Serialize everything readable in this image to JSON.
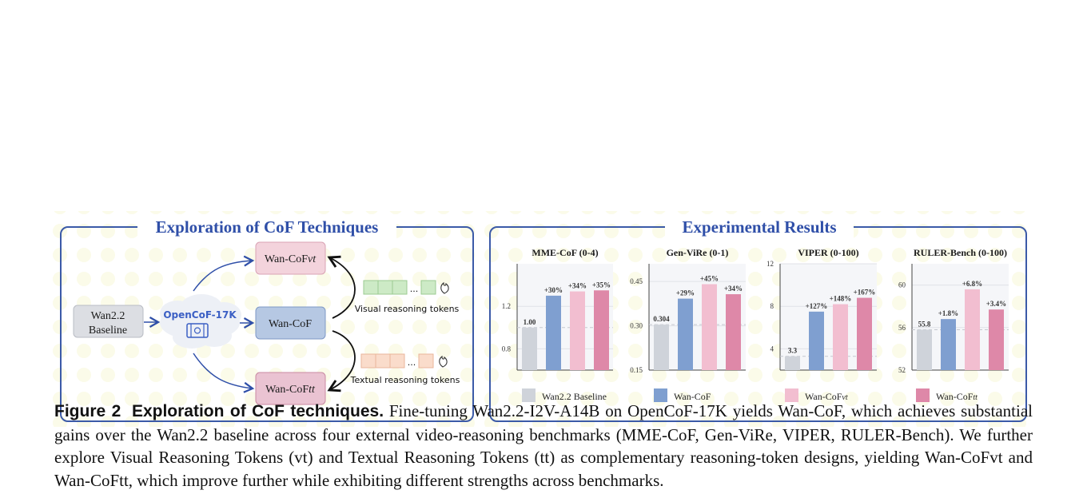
{
  "left_panel": {
    "title": "Exploration of CoF Techniques",
    "baseline_line1": "Wan2.2",
    "baseline_line2": "Baseline",
    "dataset": "OpenCoF-17K",
    "node_vt": "Wan-CoF",
    "node_vt_suffix": "vt",
    "node_mid": "Wan-CoF",
    "node_tt": "Wan-CoF",
    "node_tt_suffix": "tt",
    "visual_tokens_label": "Visual reasoning tokens",
    "textual_tokens_label": "Textual reasoning tokens",
    "ellipsis": "...",
    "colors": {
      "border": "#3b5aa8",
      "visual_token": "#cdeac6",
      "textual_token": "#fadccb",
      "vt_node": "#f3d3dc",
      "mid_node": "#b6c8e3",
      "tt_node": "#eac3d2",
      "baseline_node": "#dcdee3"
    }
  },
  "right_panel": {
    "title": "Experimental Results",
    "legend": [
      "Wan2.2 Baseline",
      "Wan-CoF",
      "Wan-CoF",
      "Wan-CoF"
    ],
    "legend_suffix": [
      "",
      "",
      "vt",
      "tt"
    ],
    "colors": [
      "#cfd3da",
      "#7f9fd0",
      "#f2bed0",
      "#de88a8"
    ]
  },
  "chart_data": [
    {
      "type": "bar",
      "title": "MME-CoF (0-4)",
      "categories": [
        "Wan2.2 Baseline",
        "Wan-CoF",
        "Wan-CoFvt",
        "Wan-CoFtt"
      ],
      "values": [
        1.0,
        1.3,
        1.34,
        1.35
      ],
      "labels": [
        "1.00",
        "+30%",
        "+34%",
        "+35%"
      ],
      "ylim": [
        0.6,
        1.6
      ],
      "yticks": [
        "0.8",
        "1.2"
      ],
      "ytick_values": [
        0.8,
        1.2
      ]
    },
    {
      "type": "bar",
      "title": "Gen-ViRe (0-1)",
      "categories": [
        "Wan2.2 Baseline",
        "Wan-CoF",
        "Wan-CoFvt",
        "Wan-CoFtt"
      ],
      "values": [
        0.304,
        0.392,
        0.441,
        0.407
      ],
      "labels": [
        "0.304",
        "+29%",
        "+45%",
        "+34%"
      ],
      "ylim": [
        0.15,
        0.51
      ],
      "yticks": [
        "0.15",
        "0.30",
        "0.45"
      ],
      "ytick_values": [
        0.15,
        0.3,
        0.45
      ]
    },
    {
      "type": "bar",
      "title": "VIPER (0-100)",
      "categories": [
        "Wan2.2 Baseline",
        "Wan-CoF",
        "Wan-CoFvt",
        "Wan-CoFtt"
      ],
      "values": [
        3.3,
        7.5,
        8.2,
        8.8
      ],
      "labels": [
        "3.3",
        "+127%",
        "+148%",
        "+167%"
      ],
      "ylim": [
        2,
        12
      ],
      "yticks": [
        "4",
        "8",
        "12"
      ],
      "ytick_values": [
        4,
        8,
        12
      ]
    },
    {
      "type": "bar",
      "title": "RULER-Bench (0-100)",
      "categories": [
        "Wan2.2 Baseline",
        "Wan-CoF",
        "Wan-CoFvt",
        "Wan-CoFtt"
      ],
      "values": [
        55.8,
        56.8,
        59.6,
        57.7
      ],
      "labels": [
        "55.8",
        "+1.8%",
        "+6.8%",
        "+3.4%"
      ],
      "ylim": [
        52,
        62
      ],
      "yticks": [
        "52",
        "56",
        "60"
      ],
      "ytick_values": [
        52,
        56,
        60
      ]
    }
  ],
  "caption": {
    "label": "Figure 2",
    "title": "Exploration of CoF techniques.",
    "text": "Fine-tuning Wan2.2-I2V-A14B on OpenCoF-17K yields Wan-CoF, which achieves substantial gains over the Wan2.2 baseline across four external video-reasoning benchmarks (MME-CoF, Gen-ViRe, VIPER, RULER-Bench). We further explore Visual Reasoning Tokens (vt) and Textual Reasoning Tokens (tt) as complementary reasoning-token designs, yielding Wan-CoFvt and Wan-CoFtt, which improve further while exhibiting different strengths across benchmarks."
  }
}
